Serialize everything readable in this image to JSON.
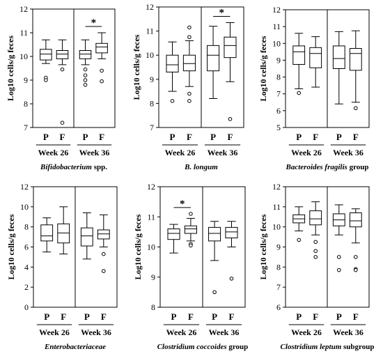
{
  "chart_data": [
    {
      "type": "box",
      "ylabel": "Log10 cells/g feces",
      "ylim": [
        7,
        12
      ],
      "yticks": [
        "7",
        "8",
        "9",
        "10",
        "11",
        "12"
      ],
      "caption": {
        "italic": "Bifidobacterium",
        "plain": " spp."
      },
      "groups": [
        {
          "label": "Week 26",
          "boxes": [
            {
              "category": "P",
              "whisker_low": 9.7,
              "q1": 9.85,
              "median": 10.1,
              "q3": 10.3,
              "whisker_high": 10.7,
              "outliers": [
                9.1,
                9.0
              ]
            },
            {
              "category": "F",
              "whisker_low": 9.65,
              "q1": 9.9,
              "median": 10.1,
              "q3": 10.25,
              "whisker_high": 10.7,
              "outliers": [
                9.45,
                7.2
              ]
            }
          ]
        },
        {
          "label": "Week 36",
          "boxes": [
            {
              "category": "P",
              "whisker_low": 9.65,
              "q1": 9.9,
              "median": 10.1,
              "q3": 10.25,
              "whisker_high": 10.7,
              "outliers": [
                9.45,
                9.2,
                9.0,
                8.8
              ]
            },
            {
              "category": "F",
              "whisker_low": 9.9,
              "q1": 10.15,
              "median": 10.4,
              "q3": 10.55,
              "whisker_high": 11.0,
              "outliers": [
                9.4,
                8.95
              ]
            }
          ]
        }
      ],
      "significance": [
        {
          "group": 1,
          "label": "*"
        }
      ]
    },
    {
      "type": "box",
      "ylabel": "Log10 cells/g feces",
      "ylim": [
        7,
        12
      ],
      "yticks": [
        "7",
        "8",
        "9",
        "10",
        "11",
        "12"
      ],
      "caption": {
        "italic": "B. longum",
        "plain": ""
      },
      "groups": [
        {
          "label": "Week 26",
          "boxes": [
            {
              "category": "P",
              "whisker_low": 8.5,
              "q1": 9.3,
              "median": 9.6,
              "q3": 10.0,
              "whisker_high": 10.55,
              "outliers": [
                8.1
              ]
            },
            {
              "category": "F",
              "whisker_low": 8.7,
              "q1": 9.35,
              "median": 9.65,
              "q3": 10.0,
              "whisker_high": 10.6,
              "outliers": [
                11.15,
                10.75,
                8.4,
                8.1
              ]
            }
          ]
        },
        {
          "label": "Week 36",
          "boxes": [
            {
              "category": "P",
              "whisker_low": 8.2,
              "q1": 9.35,
              "median": 10.0,
              "q3": 10.4,
              "whisker_high": 11.2,
              "outliers": []
            },
            {
              "category": "F",
              "whisker_low": 8.9,
              "q1": 9.9,
              "median": 10.4,
              "q3": 10.75,
              "whisker_high": 11.35,
              "outliers": [
                7.35
              ]
            }
          ]
        }
      ],
      "significance": [
        {
          "group": 1,
          "label": "*"
        }
      ]
    },
    {
      "type": "box",
      "ylabel": "Log10 cells/g feces",
      "ylim": [
        5,
        12
      ],
      "yticks": [
        "5",
        "6",
        "7",
        "8",
        "9",
        "10",
        "11",
        "12"
      ],
      "caption": {
        "italic": "Bacteroides fragilis",
        "plain": " group"
      },
      "groups": [
        {
          "label": "Week 26",
          "boxes": [
            {
              "category": "P",
              "whisker_low": 7.3,
              "q1": 8.75,
              "median": 9.5,
              "q3": 9.85,
              "whisker_high": 10.6,
              "outliers": [
                7.05
              ]
            },
            {
              "category": "F",
              "whisker_low": 7.4,
              "q1": 8.55,
              "median": 9.4,
              "q3": 9.75,
              "whisker_high": 10.4,
              "outliers": []
            }
          ]
        },
        {
          "label": "Week 36",
          "boxes": [
            {
              "category": "P",
              "whisker_low": 6.4,
              "q1": 8.5,
              "median": 9.1,
              "q3": 9.85,
              "whisker_high": 10.7,
              "outliers": []
            },
            {
              "category": "F",
              "whisker_low": 6.5,
              "q1": 8.4,
              "median": 9.4,
              "q3": 9.7,
              "whisker_high": 10.75,
              "outliers": [
                6.15
              ]
            }
          ]
        }
      ],
      "significance": []
    },
    {
      "type": "box",
      "ylabel": "Log10 cells/g feces",
      "ylim": [
        0,
        12
      ],
      "yticks": [
        "0",
        "2",
        "4",
        "6",
        "8",
        "10",
        "12"
      ],
      "caption": {
        "italic": "Enterobacteriaceae",
        "plain": ""
      },
      "groups": [
        {
          "label": "Week 26",
          "boxes": [
            {
              "category": "P",
              "whisker_low": 5.5,
              "q1": 6.6,
              "median": 7.1,
              "q3": 8.2,
              "whisker_high": 8.9,
              "outliers": []
            },
            {
              "category": "F",
              "whisker_low": 5.3,
              "q1": 6.4,
              "median": 7.4,
              "q3": 8.3,
              "whisker_high": 10.0,
              "outliers": []
            }
          ]
        },
        {
          "label": "Week 36",
          "boxes": [
            {
              "category": "P",
              "whisker_low": 4.8,
              "q1": 6.1,
              "median": 7.1,
              "q3": 7.9,
              "whisker_high": 9.4,
              "outliers": []
            },
            {
              "category": "F",
              "whisker_low": 6.0,
              "q1": 6.8,
              "median": 7.3,
              "q3": 7.7,
              "whisker_high": 9.2,
              "outliers": [
                5.3,
                3.6
              ]
            }
          ]
        }
      ],
      "significance": []
    },
    {
      "type": "box",
      "ylabel": "Log10 cells/g feces",
      "ylim": [
        8,
        12
      ],
      "yticks": [
        "8",
        "9",
        "10",
        "11",
        "12"
      ],
      "caption": {
        "italic": "Clostridium coccoides",
        "plain": " group"
      },
      "groups": [
        {
          "label": "Week 26",
          "boxes": [
            {
              "category": "P",
              "whisker_low": 9.8,
              "q1": 10.25,
              "median": 10.45,
              "q3": 10.6,
              "whisker_high": 10.75,
              "outliers": []
            },
            {
              "category": "F",
              "whisker_low": 10.2,
              "q1": 10.45,
              "median": 10.6,
              "q3": 10.7,
              "whisker_high": 10.95,
              "outliers": [
                11.1,
                10.1,
                10.05
              ]
            }
          ]
        },
        {
          "label": "Week 36",
          "boxes": [
            {
              "category": "P",
              "whisker_low": 9.55,
              "q1": 10.2,
              "median": 10.45,
              "q3": 10.65,
              "whisker_high": 10.85,
              "outliers": [
                8.5
              ]
            },
            {
              "category": "F",
              "whisker_low": 10.0,
              "q1": 10.3,
              "median": 10.5,
              "q3": 10.65,
              "whisker_high": 10.85,
              "outliers": [
                8.95
              ]
            }
          ]
        }
      ],
      "significance": [
        {
          "group": 0,
          "label": "*"
        }
      ]
    },
    {
      "type": "box",
      "ylabel": "Log10 cells/g feces",
      "ylim": [
        6,
        12
      ],
      "yticks": [
        "6",
        "7",
        "8",
        "9",
        "10",
        "11",
        "12"
      ],
      "caption": {
        "italic": "Clostridium leptum",
        "plain": " subgroup"
      },
      "groups": [
        {
          "label": "Week 26",
          "boxes": [
            {
              "category": "P",
              "whisker_low": 9.8,
              "q1": 10.2,
              "median": 10.4,
              "q3": 10.6,
              "whisker_high": 11.0,
              "outliers": [
                9.35
              ]
            },
            {
              "category": "F",
              "whisker_low": 9.6,
              "q1": 10.1,
              "median": 10.4,
              "q3": 10.8,
              "whisker_high": 11.25,
              "outliers": [
                9.25,
                8.8,
                8.5
              ]
            }
          ]
        },
        {
          "label": "Week 36",
          "boxes": [
            {
              "category": "P",
              "whisker_low": 9.6,
              "q1": 10.05,
              "median": 10.35,
              "q3": 10.65,
              "whisker_high": 11.1,
              "outliers": [
                8.5,
                7.85
              ]
            },
            {
              "category": "F",
              "whisker_low": 9.2,
              "q1": 10.0,
              "median": 10.3,
              "q3": 10.7,
              "whisker_high": 10.9,
              "outliers": [
                8.5,
                7.9,
                7.85
              ]
            }
          ]
        }
      ],
      "significance": []
    }
  ]
}
